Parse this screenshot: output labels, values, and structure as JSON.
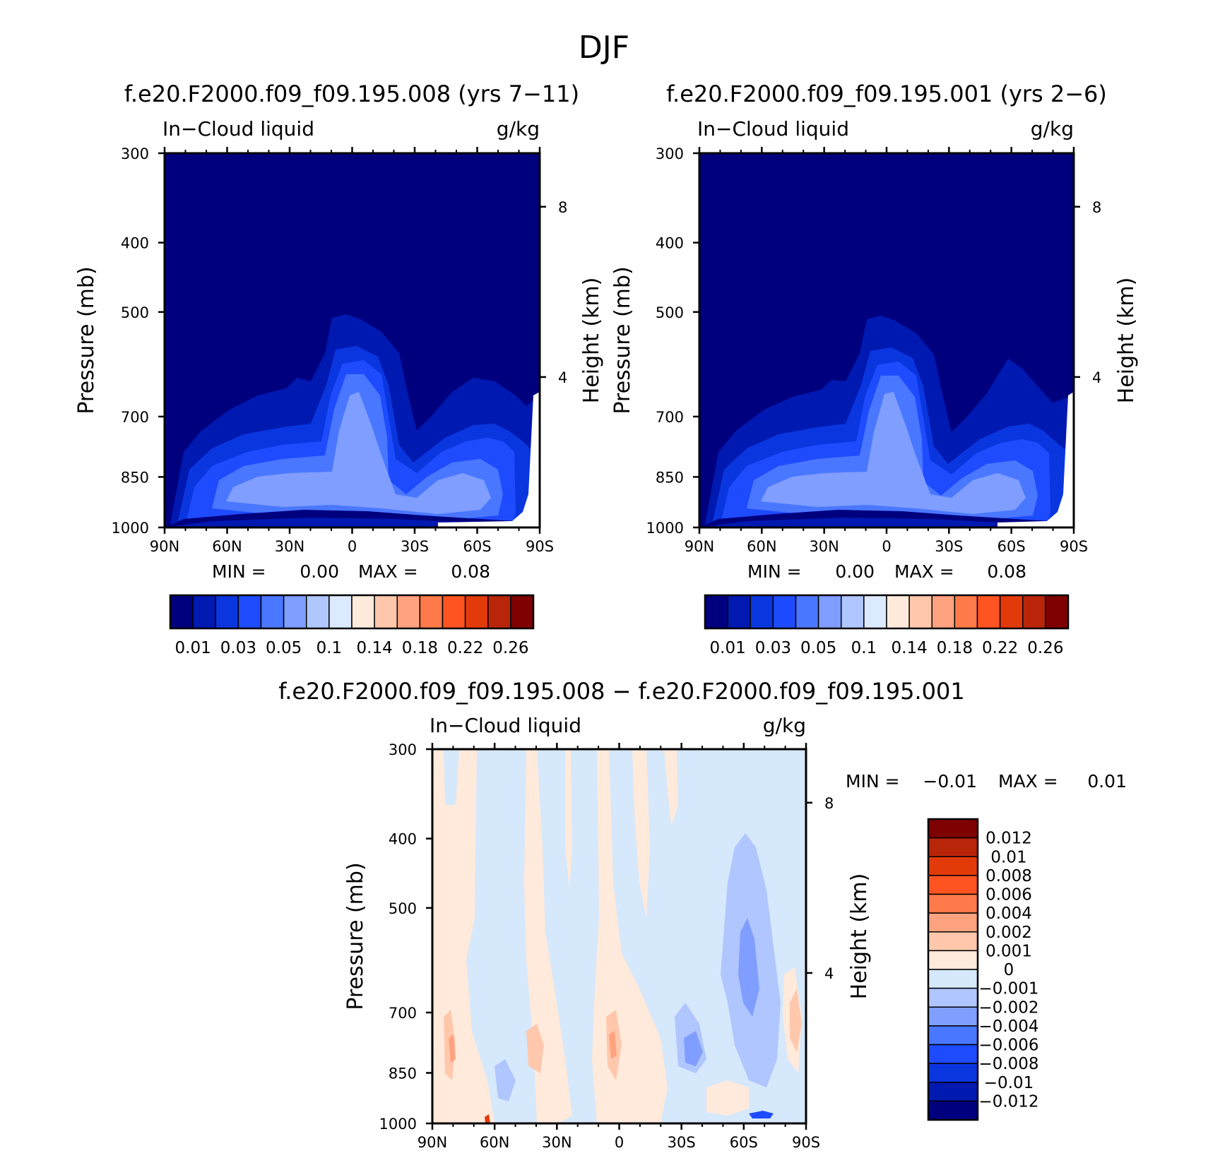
{
  "chart_data": {
    "type": "heatmap",
    "title": "DJF",
    "panels": [
      {
        "id": "left",
        "title": "f.e20.F2000.f09_f09.195.008 (yrs 7−11)",
        "left_label": "In−Cloud liquid",
        "right_label": "g/kg",
        "ylabel": "Pressure (mb)",
        "y2label": "Height (km)",
        "x_ticks": [
          "90N",
          "60N",
          "30N",
          "0",
          "30S",
          "60S",
          "90S"
        ],
        "y_ticks": [
          "300",
          "400",
          "500",
          "700",
          "850",
          "1000"
        ],
        "y2_ticks": [
          "8",
          "4"
        ],
        "min_label": "MIN =",
        "min_value": "0.00",
        "max_label": "MAX =",
        "max_value": "0.08",
        "colorbar_labels": [
          "0.01",
          "0.03",
          "0.05",
          "0.1",
          "0.14",
          "0.18",
          "0.22",
          "0.26"
        ]
      },
      {
        "id": "right",
        "title": "f.e20.F2000.f09_f09.195.001 (yrs 2−6)",
        "left_label": "In−Cloud liquid",
        "right_label": "g/kg",
        "ylabel": "Pressure (mb)",
        "y2label": "Height (km)",
        "x_ticks": [
          "90N",
          "60N",
          "30N",
          "0",
          "30S",
          "60S",
          "90S"
        ],
        "y_ticks": [
          "300",
          "400",
          "500",
          "700",
          "850",
          "1000"
        ],
        "y2_ticks": [
          "8",
          "4"
        ],
        "min_label": "MIN =",
        "min_value": "0.00",
        "max_label": "MAX =",
        "max_value": "0.08",
        "colorbar_labels": [
          "0.01",
          "0.03",
          "0.05",
          "0.1",
          "0.14",
          "0.18",
          "0.22",
          "0.26"
        ]
      },
      {
        "id": "diff",
        "title": "f.e20.F2000.f09_f09.195.008 − f.e20.F2000.f09_f09.195.001",
        "left_label": "In−Cloud liquid",
        "right_label": "g/kg",
        "ylabel": "Pressure (mb)",
        "y2label": "Height (km)",
        "x_ticks": [
          "90N",
          "60N",
          "30N",
          "0",
          "30S",
          "60S",
          "90S"
        ],
        "y_ticks": [
          "300",
          "400",
          "500",
          "700",
          "850",
          "1000"
        ],
        "y2_ticks": [
          "8",
          "4"
        ],
        "min_label": "MIN =",
        "min_value": "−0.01",
        "max_label": "MAX =",
        "max_value": "0.01",
        "colorbar_labels": [
          "0.012",
          "0.01",
          "0.008",
          "0.006",
          "0.004",
          "0.002",
          "0.001",
          "0",
          "−0.001",
          "−0.002",
          "−0.004",
          "−0.006",
          "−0.008",
          "−0.01",
          "−0.012"
        ]
      }
    ],
    "abs_colors": [
      "#00007f",
      "#0019b0",
      "#0a36e0",
      "#1f4bff",
      "#4a77ff",
      "#7f9eff",
      "#b0c6ff",
      "#dceaff",
      "#ffeadb",
      "#ffc8ad",
      "#ffa27f",
      "#ff7a4a",
      "#ff5421",
      "#e33a0a",
      "#b82508",
      "#7f0000"
    ],
    "diff_colors": [
      "#7f0000",
      "#b82508",
      "#e33a0a",
      "#ff5421",
      "#ff7a4a",
      "#ffa27f",
      "#ffc8ad",
      "#ffeadb",
      "#d6e8fb",
      "#b0c6ff",
      "#7f9eff",
      "#4a77ff",
      "#1f4bff",
      "#0a36e0",
      "#0019b0",
      "#00007f"
    ]
  }
}
